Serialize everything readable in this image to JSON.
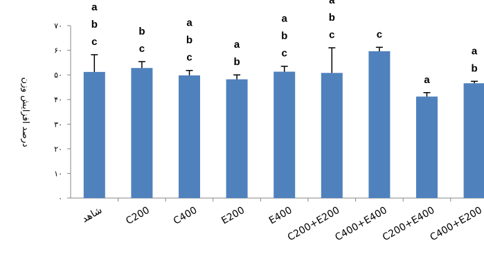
{
  "chart_data": {
    "type": "bar",
    "ylabel": "درصد افزایش وزن",
    "ylim": [
      0,
      70
    ],
    "yticks": [
      0,
      10,
      20,
      30,
      40,
      50,
      60,
      70
    ],
    "ytick_labels": [
      "٠",
      "١٠",
      "٢٠",
      "٣٠",
      "۴٠",
      "۵٠",
      "۶٠",
      "٧٠"
    ],
    "categories": [
      "شاهد",
      "C200",
      "C400",
      "E200",
      "E400",
      "C200+E200",
      "C400+E400",
      "C200+E400",
      "C400+E200"
    ],
    "values": [
      51.2,
      52.8,
      49.8,
      48.2,
      51.3,
      50.8,
      59.6,
      41.2,
      46.6
    ],
    "errors": [
      7.0,
      2.6,
      2.0,
      1.8,
      2.2,
      10.2,
      1.6,
      1.6,
      0.8
    ],
    "significance": [
      [
        "a",
        "b",
        "c"
      ],
      [
        "b",
        "c"
      ],
      [
        "a",
        "b",
        "c"
      ],
      [
        "a",
        "b"
      ],
      [
        "a",
        "b",
        "c"
      ],
      [
        "a",
        "b",
        "c"
      ],
      [
        "c"
      ],
      [
        "a"
      ],
      [
        "a",
        "b"
      ]
    ],
    "bar_color": "#4f81bd",
    "grid": false,
    "legend": "none"
  }
}
